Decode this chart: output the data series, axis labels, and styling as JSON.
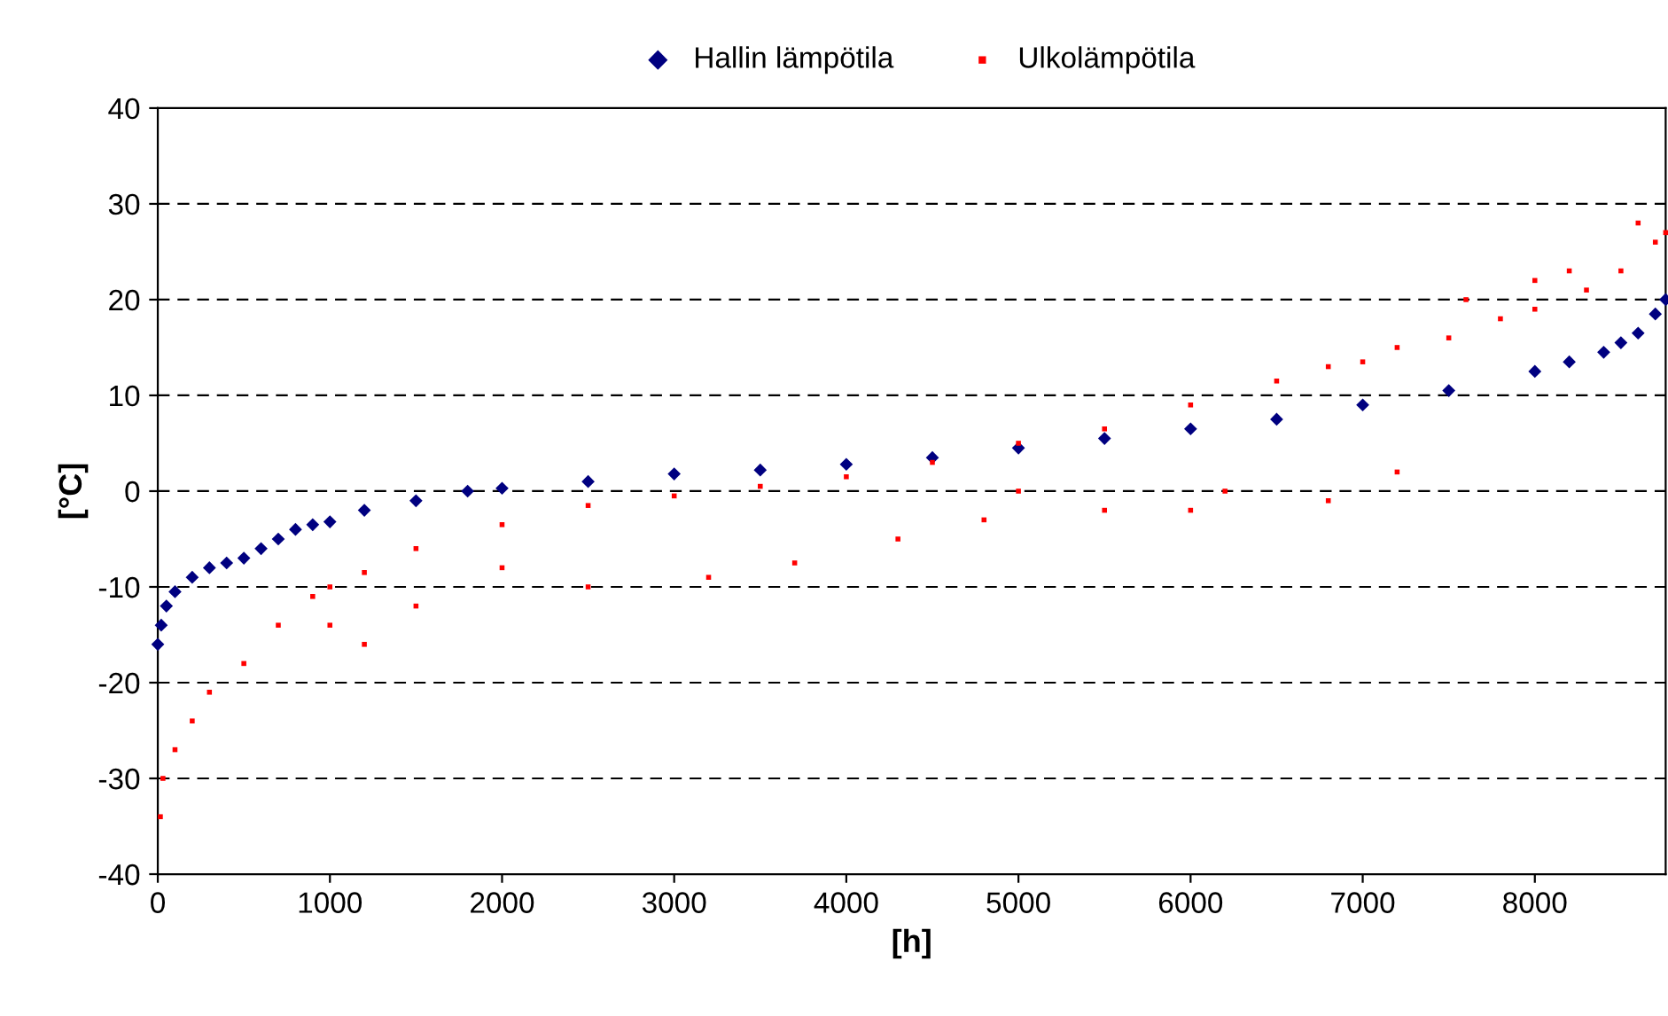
{
  "chart_data": {
    "type": "scatter",
    "xlabel": "[h]",
    "ylabel": "[°C]",
    "xlim": [
      0,
      8760
    ],
    "xticks": [
      0,
      1000,
      2000,
      3000,
      4000,
      5000,
      6000,
      7000,
      8000
    ],
    "ylim": [
      -40,
      40
    ],
    "yticks": [
      -40,
      -30,
      -20,
      -10,
      0,
      10,
      20,
      30,
      40
    ],
    "grid": "y",
    "legend": "top",
    "series": [
      {
        "name": "Hallin lämpötila",
        "color": "#000080",
        "marker": "diamond",
        "x": [
          0,
          20,
          50,
          100,
          200,
          300,
          400,
          500,
          600,
          700,
          800,
          900,
          1000,
          1200,
          1500,
          1800,
          2000,
          2500,
          3000,
          3500,
          4000,
          4500,
          5000,
          5500,
          6000,
          6500,
          7000,
          7500,
          8000,
          8200,
          8400,
          8500,
          8600,
          8700,
          8760
        ],
        "values": [
          -16,
          -14,
          -12,
          -10.5,
          -9,
          -8,
          -7.5,
          -7,
          -6,
          -5,
          -4,
          -3.5,
          -3.2,
          -2,
          -1,
          0,
          0.3,
          1,
          1.8,
          2.2,
          2.8,
          3.5,
          4.5,
          5.5,
          6.5,
          7.5,
          9,
          10.5,
          12.5,
          13.5,
          14.5,
          15.5,
          16.5,
          18.5,
          20
        ]
      },
      {
        "name": "Ulkolämpötila",
        "color": "#ff0000",
        "marker": "square",
        "x": [
          15,
          30,
          100,
          200,
          300,
          500,
          700,
          900,
          1000,
          1200,
          1500,
          2000,
          2500,
          3000,
          3500,
          4000,
          4500,
          5000,
          5500,
          6000,
          6500,
          7000,
          7500,
          8000,
          8300,
          8500,
          8700,
          8760,
          1000,
          1200,
          1500,
          2000,
          2500,
          3200,
          3700,
          4300,
          4800,
          5000,
          5500,
          6000,
          6200,
          6800,
          7200,
          6800,
          7200,
          7600,
          7800,
          8000,
          8200,
          8600
        ],
        "values": [
          -34,
          -30,
          -27,
          -24,
          -21,
          -18,
          -14,
          -11,
          -10,
          -8.5,
          -6,
          -3.5,
          -1.5,
          -0.5,
          0.5,
          1.5,
          3,
          5,
          6.5,
          9,
          11.5,
          13.5,
          16,
          19,
          21,
          23,
          26,
          27,
          -14,
          -16,
          -12,
          -8,
          -10,
          -9,
          -7.5,
          -5,
          -3,
          0,
          -2,
          -2,
          0,
          -1,
          2,
          13,
          15,
          20,
          18,
          22,
          23,
          28
        ]
      }
    ]
  }
}
